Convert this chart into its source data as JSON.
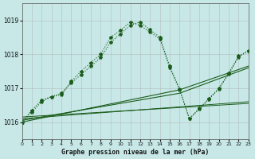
{
  "title": "Graphe pression niveau de la mer (hPa)",
  "bg_color": "#c8e8e8",
  "line_color": "#1a5c1a",
  "xlim": [
    0,
    23
  ],
  "ylim": [
    1015.5,
    1019.5
  ],
  "yticks": [
    1016,
    1017,
    1018,
    1019
  ],
  "xticks": [
    0,
    1,
    2,
    3,
    4,
    5,
    6,
    7,
    8,
    9,
    10,
    11,
    12,
    13,
    14,
    15,
    16,
    17,
    18,
    19,
    20,
    21,
    22,
    23
  ],
  "line_dotted1": {
    "x": [
      0,
      1,
      2,
      3,
      4,
      5,
      6,
      7,
      8,
      9,
      10,
      11,
      12,
      13,
      14,
      15,
      16,
      17,
      18,
      19,
      20,
      21,
      22,
      23
    ],
    "y": [
      1016.0,
      1016.35,
      1016.65,
      1016.75,
      1016.8,
      1017.2,
      1017.5,
      1017.75,
      1018.0,
      1018.5,
      1018.7,
      1018.95,
      1018.85,
      1018.65,
      1018.45,
      1017.6,
      1016.95,
      1016.1,
      1016.4,
      1016.7,
      1017.0,
      1017.45,
      1017.95,
      1018.1
    ]
  },
  "line_dotted2": {
    "x": [
      0,
      1,
      2,
      3,
      4,
      5,
      6,
      7,
      8,
      9,
      10,
      11,
      12,
      13,
      14,
      15,
      16,
      17,
      18,
      19,
      20,
      21,
      22,
      23
    ],
    "y": [
      1016.0,
      1016.3,
      1016.6,
      1016.75,
      1016.85,
      1017.15,
      1017.4,
      1017.65,
      1017.9,
      1018.35,
      1018.6,
      1018.85,
      1018.95,
      1018.72,
      1018.5,
      1017.65,
      1016.98,
      1016.1,
      1016.38,
      1016.68,
      1016.98,
      1017.42,
      1017.92,
      1018.1
    ]
  },
  "line_solid1": {
    "x": [
      0,
      16,
      23
    ],
    "y": [
      1016.0,
      1016.95,
      1017.65
    ]
  },
  "line_solid2": {
    "x": [
      0,
      16,
      23
    ],
    "y": [
      1016.05,
      1016.85,
      1017.6
    ]
  },
  "line_solid3": {
    "x": [
      0,
      23
    ],
    "y": [
      1016.1,
      1016.6
    ]
  },
  "line_solid4": {
    "x": [
      0,
      23
    ],
    "y": [
      1016.15,
      1016.55
    ]
  }
}
